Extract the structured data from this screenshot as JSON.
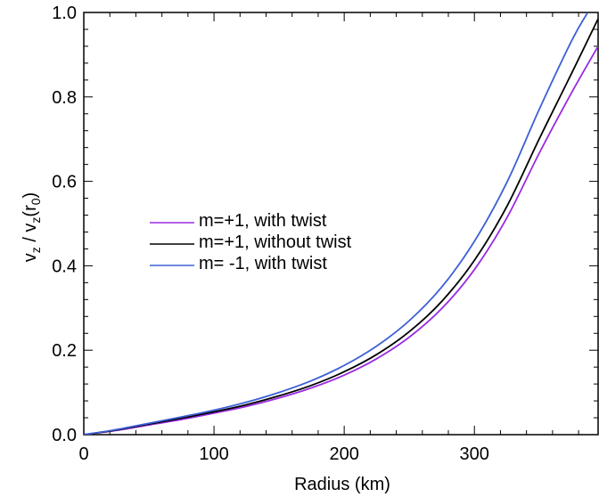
{
  "chart_data": {
    "type": "line",
    "xlabel": "Radius (km)",
    "ylabel": {
      "main": "v",
      "sub1": "z",
      "mid": " / v",
      "sub2": "z",
      "open": "(r",
      "sub3": "0",
      "close": ")"
    },
    "xlim": [
      0,
      395
    ],
    "ylim": [
      0.0,
      1.0
    ],
    "x_ticks": [
      0,
      100,
      200,
      300
    ],
    "x_tick_labels": [
      "0",
      "100",
      "200",
      "300"
    ],
    "y_ticks": [
      0.0,
      0.2,
      0.4,
      0.6,
      0.8,
      1.0
    ],
    "y_tick_labels": [
      "0.0",
      "0.2",
      "0.4",
      "0.6",
      "0.8",
      "1.0"
    ],
    "grid": false,
    "legend_position": "center-left",
    "series": [
      {
        "name": "m=+1, with twist",
        "color": "#9a2be0",
        "x": [
          0,
          25,
          50,
          75,
          100,
          125,
          150,
          175,
          200,
          225,
          250,
          275,
          300,
          325,
          350,
          375,
          395
        ],
        "y": [
          0.0,
          0.01,
          0.023,
          0.036,
          0.051,
          0.067,
          0.087,
          0.111,
          0.141,
          0.18,
          0.231,
          0.299,
          0.391,
          0.514,
          0.668,
          0.812,
          0.92
        ]
      },
      {
        "name": "m=+1, without twist",
        "color": "#000000",
        "x": [
          0,
          25,
          50,
          75,
          100,
          125,
          150,
          175,
          200,
          225,
          250,
          275,
          300,
          325,
          350,
          375,
          395
        ],
        "y": [
          0.0,
          0.011,
          0.025,
          0.039,
          0.054,
          0.071,
          0.092,
          0.117,
          0.149,
          0.19,
          0.244,
          0.316,
          0.413,
          0.541,
          0.702,
          0.858,
          0.985
        ]
      },
      {
        "name": "m= -1, with twist",
        "color": "#3d60d6",
        "x": [
          0,
          25,
          50,
          75,
          100,
          125,
          150,
          175,
          200,
          225,
          250,
          275,
          300,
          325,
          350,
          375,
          387
        ],
        "y": [
          0.0,
          0.012,
          0.027,
          0.042,
          0.058,
          0.077,
          0.1,
          0.128,
          0.164,
          0.21,
          0.27,
          0.35,
          0.458,
          0.598,
          0.772,
          0.935,
          1.0
        ]
      }
    ]
  }
}
